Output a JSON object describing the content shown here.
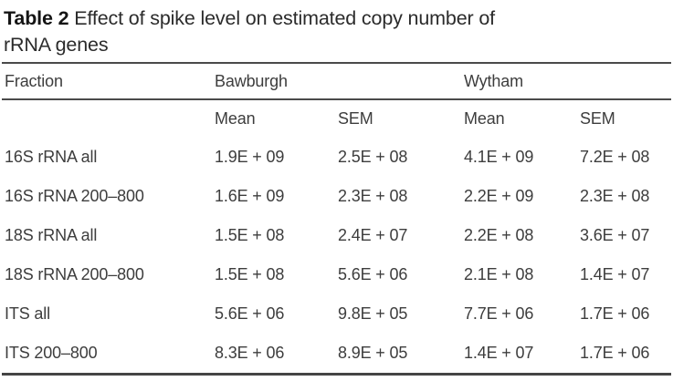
{
  "title": {
    "bold": "Table 2",
    "line1": "Effect of spike level on estimated copy number of",
    "line2": "rRNA genes"
  },
  "table": {
    "header_row": [
      "Fraction",
      "Bawburgh",
      "Wytham"
    ],
    "subheader_row": [
      "Mean",
      "SEM",
      "Mean",
      "SEM"
    ],
    "rows": [
      [
        "16S rRNA all",
        "1.9E + 09",
        "2.5E + 08",
        "4.1E + 09",
        "7.2E + 08"
      ],
      [
        "16S rRNA 200–800",
        "1.6E + 09",
        "2.3E + 08",
        "2.2E + 09",
        "2.3E + 08"
      ],
      [
        "18S rRNA all",
        "1.5E + 08",
        "2.4E + 07",
        "2.2E + 08",
        "3.6E + 07"
      ],
      [
        "18S rRNA 200–800",
        "1.5E + 08",
        "5.6E + 06",
        "2.1E + 08",
        "1.4E + 07"
      ],
      [
        "ITS all",
        "5.6E + 06",
        "9.8E + 05",
        "7.7E + 06",
        "1.7E + 06"
      ],
      [
        "ITS 200–800",
        "8.3E + 06",
        "8.9E + 05",
        "1.4E + 07",
        "1.7E + 06"
      ]
    ]
  },
  "colors": {
    "background": "#ffffff",
    "body_text": "#3d3d3d",
    "title_text": "#141414",
    "rule": "#4a4a4a"
  }
}
